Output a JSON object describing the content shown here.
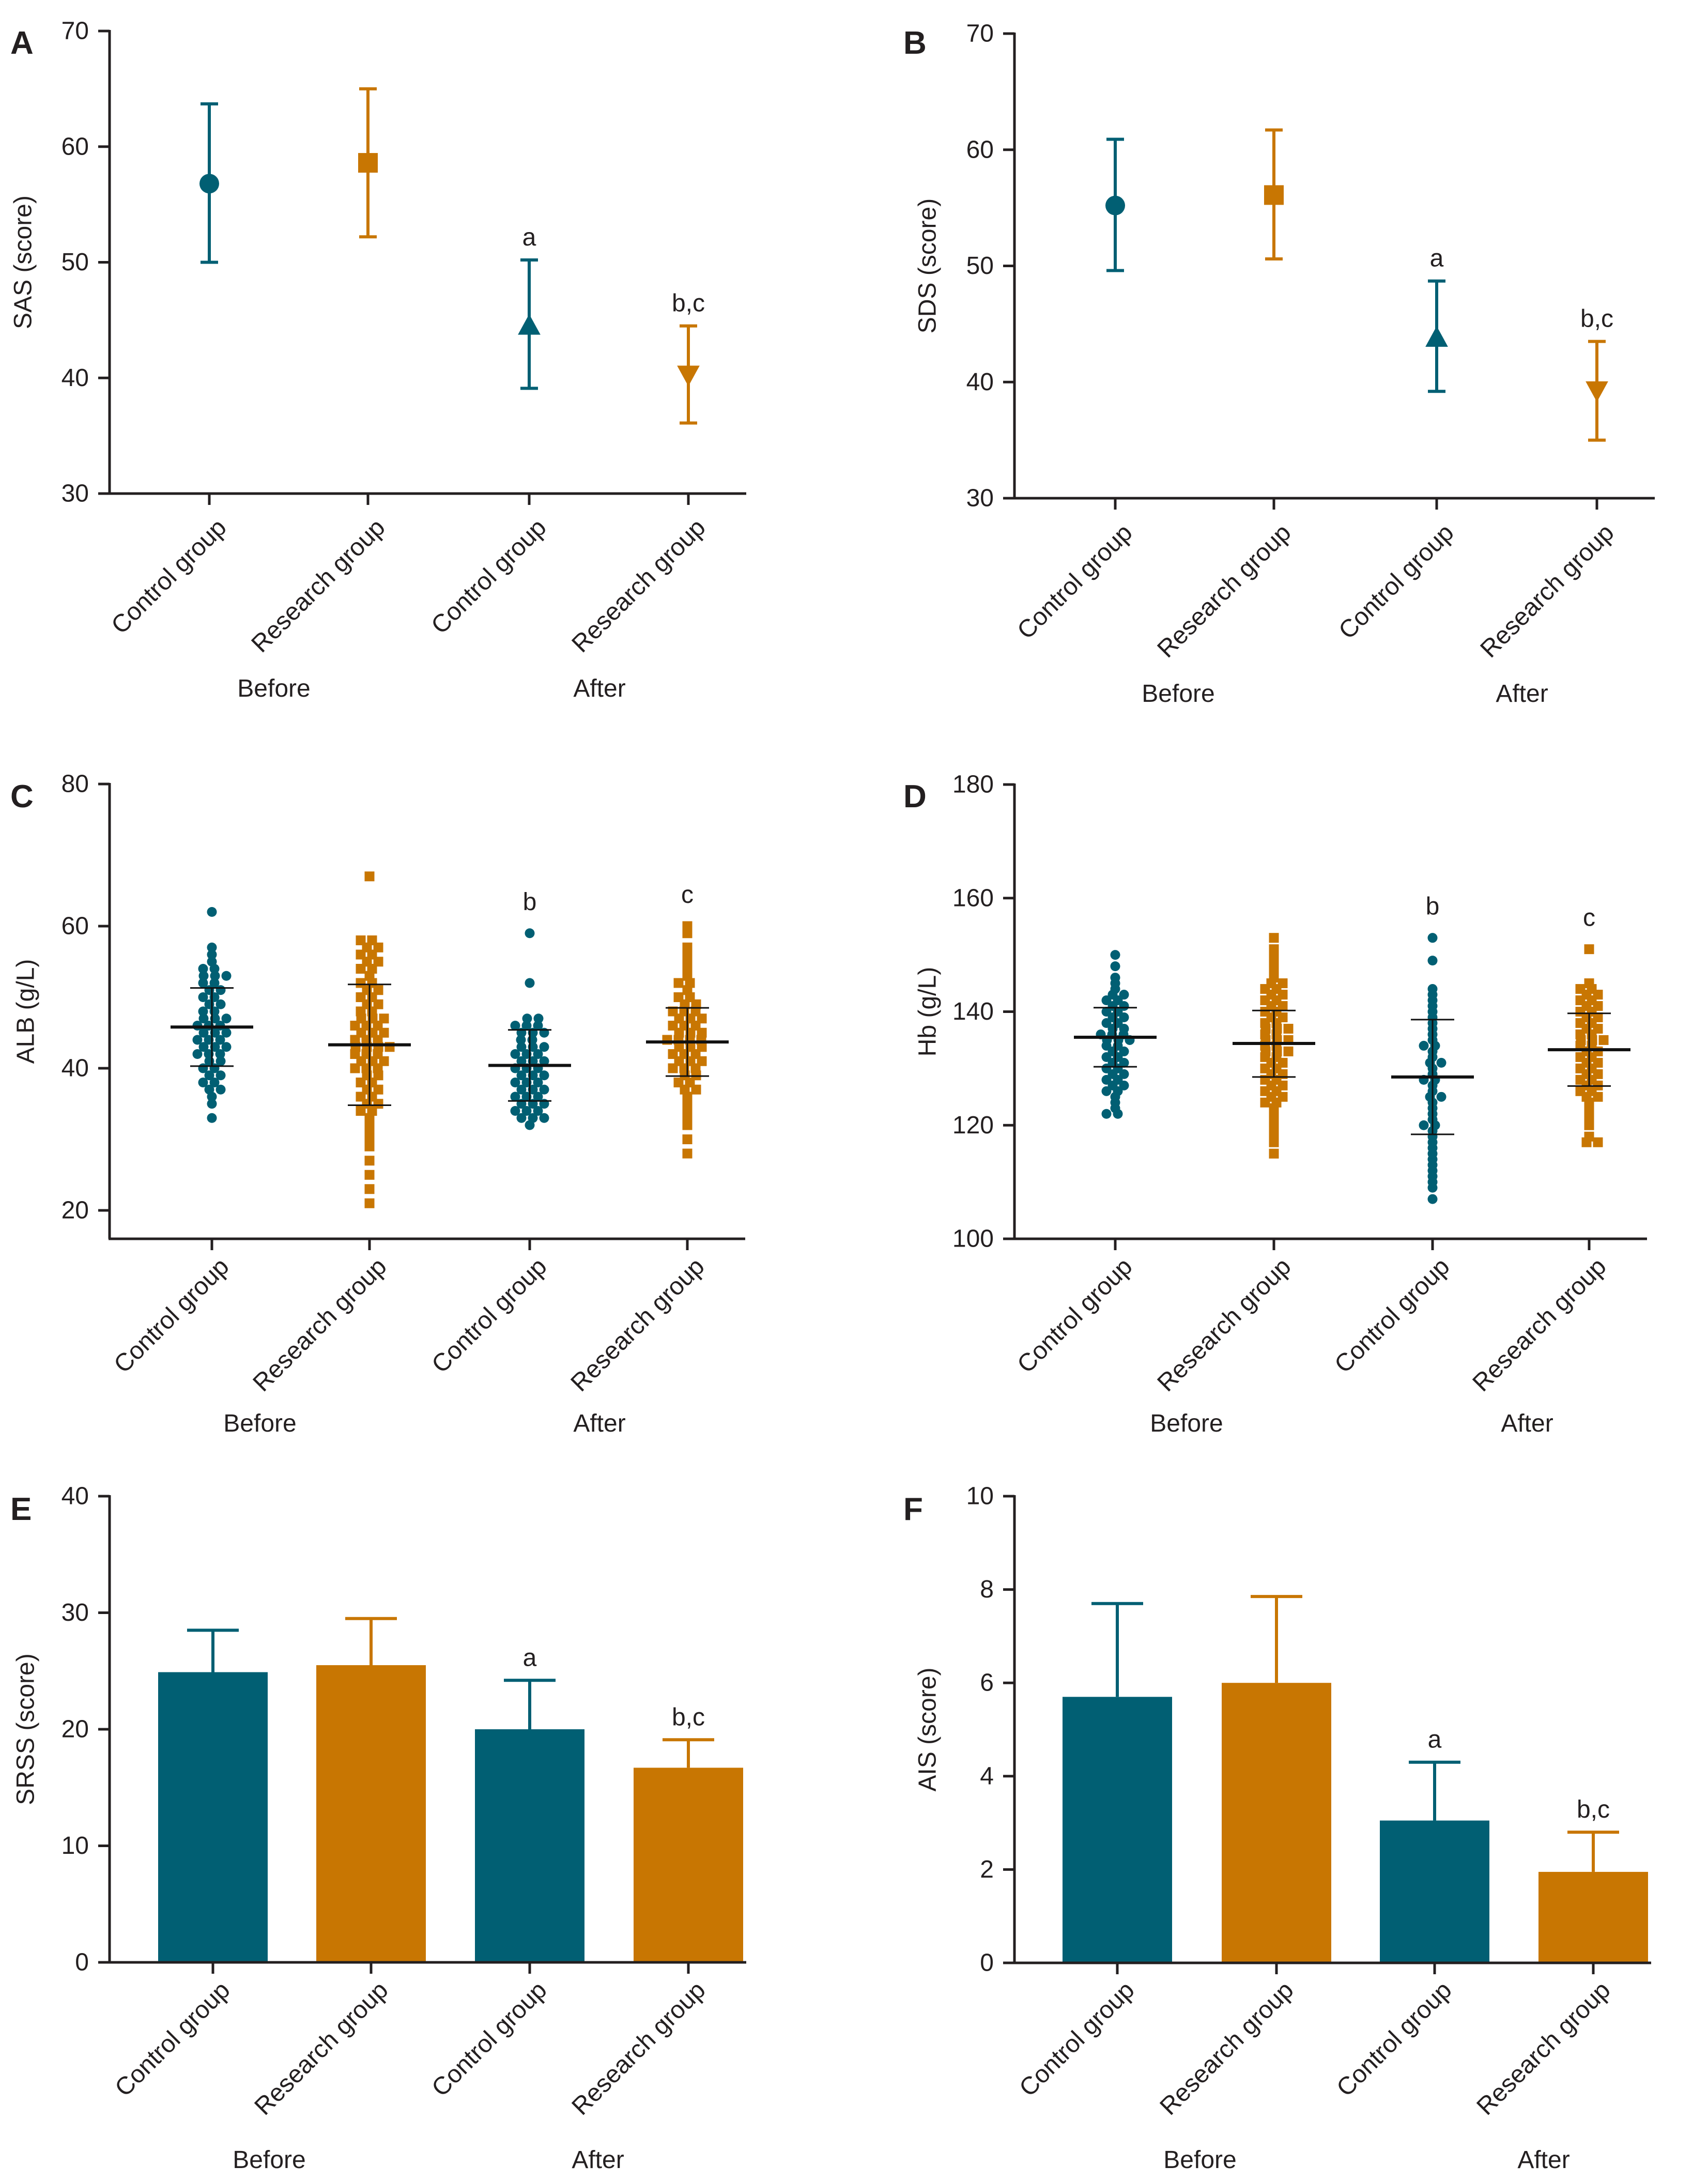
{
  "colors": {
    "control": "#015f73",
    "research": "#c87602",
    "axis": "#231f20"
  },
  "chart_data": [
    {
      "panel": "A",
      "type": "errorbar",
      "ylabel": "SAS (score)",
      "ylim": [
        30,
        70
      ],
      "yticks": [
        "30",
        "40",
        "50",
        "60",
        "70"
      ],
      "categories": [
        "Control group",
        "Research group",
        "Control group",
        "Research group"
      ],
      "groups": [
        "Before",
        "After"
      ],
      "points": [
        {
          "series": "control",
          "marker": "circle",
          "mean": 56.8,
          "low": 50.0,
          "high": 63.7,
          "label": ""
        },
        {
          "series": "research",
          "marker": "square",
          "mean": 58.6,
          "low": 52.2,
          "high": 65.0,
          "label": ""
        },
        {
          "series": "control",
          "marker": "triangle-up",
          "mean": 44.5,
          "low": 39.1,
          "high": 50.2,
          "label": "a"
        },
        {
          "series": "research",
          "marker": "triangle-down",
          "mean": 40.3,
          "low": 36.1,
          "high": 44.5,
          "label": "b,c"
        }
      ]
    },
    {
      "panel": "B",
      "type": "errorbar",
      "ylabel": "SDS (score)",
      "ylim": [
        30,
        70
      ],
      "yticks": [
        "30",
        "40",
        "50",
        "60",
        "70"
      ],
      "categories": [
        "Control group",
        "Research group",
        "Control group",
        "Research group"
      ],
      "groups": [
        "Before",
        "After"
      ],
      "points": [
        {
          "series": "control",
          "marker": "circle",
          "mean": 55.2,
          "low": 49.6,
          "high": 60.9,
          "label": ""
        },
        {
          "series": "research",
          "marker": "square",
          "mean": 56.1,
          "low": 50.6,
          "high": 61.7,
          "label": ""
        },
        {
          "series": "control",
          "marker": "triangle-up",
          "mean": 43.8,
          "low": 39.2,
          "high": 48.7,
          "label": "a"
        },
        {
          "series": "research",
          "marker": "triangle-down",
          "mean": 39.3,
          "low": 35.0,
          "high": 43.5,
          "label": "b,c"
        }
      ]
    },
    {
      "panel": "C",
      "type": "scatter",
      "ylabel": "ALB (g/L)",
      "ylim": [
        16,
        80
      ],
      "yticks": [
        "20",
        "40",
        "60",
        "80"
      ],
      "categories": [
        "Control group",
        "Research group",
        "Control group",
        "Research group"
      ],
      "groups": [
        "Before",
        "After"
      ],
      "columns": [
        {
          "series": "control",
          "marker": "circle",
          "label": "",
          "mean": 45.8,
          "sdlow": 40.3,
          "sdhigh": 51.3,
          "values": [
            62,
            57,
            56,
            55,
            54,
            54,
            53,
            53,
            53,
            52,
            52,
            51,
            51,
            50,
            50,
            49,
            49,
            48,
            48,
            47,
            47,
            47,
            46,
            46,
            46,
            45,
            45,
            45,
            44,
            44,
            44,
            43,
            43,
            43,
            42,
            42,
            42,
            41,
            41,
            40,
            40,
            39,
            39,
            38,
            38,
            37,
            37,
            36,
            35,
            33
          ]
        },
        {
          "series": "research",
          "marker": "square",
          "label": "",
          "mean": 43.3,
          "sdlow": 34.8,
          "sdhigh": 51.8,
          "values": [
            67,
            58,
            58,
            57,
            57,
            56,
            56,
            55,
            55,
            54,
            54,
            53,
            52,
            52,
            51,
            51,
            50,
            50,
            49,
            49,
            48,
            48,
            47,
            47,
            47,
            46,
            46,
            46,
            45,
            45,
            45,
            44,
            44,
            44,
            43,
            43,
            43,
            43,
            42,
            42,
            42,
            41,
            41,
            41,
            40,
            40,
            40,
            39,
            39,
            38,
            38,
            37,
            37,
            36,
            36,
            35,
            35,
            34,
            34,
            33,
            32,
            31,
            30,
            29,
            27,
            25,
            23,
            21
          ]
        },
        {
          "series": "control",
          "marker": "circle",
          "label": "b",
          "mean": 40.4,
          "sdlow": 35.4,
          "sdhigh": 45.4,
          "values": [
            59,
            52,
            47,
            47,
            46,
            46,
            46,
            45,
            45,
            45,
            44,
            44,
            43,
            43,
            43,
            42,
            42,
            42,
            41,
            41,
            41,
            40,
            40,
            40,
            39,
            39,
            39,
            38,
            38,
            38,
            37,
            37,
            37,
            36,
            36,
            36,
            35,
            35,
            35,
            34,
            34,
            34,
            33,
            33,
            33,
            32
          ]
        },
        {
          "series": "research",
          "marker": "square",
          "label": "c",
          "mean": 43.7,
          "sdlow": 38.9,
          "sdhigh": 48.5,
          "values": [
            60,
            59,
            57,
            56,
            55,
            54,
            53,
            52,
            52,
            51,
            50,
            50,
            49,
            49,
            48,
            48,
            48,
            47,
            47,
            47,
            46,
            46,
            46,
            45,
            45,
            45,
            44,
            44,
            44,
            44,
            43,
            43,
            43,
            42,
            42,
            42,
            41,
            41,
            41,
            40,
            40,
            40,
            39,
            39,
            38,
            38,
            37,
            37,
            36,
            35,
            34,
            33,
            32,
            30,
            28
          ]
        }
      ]
    },
    {
      "panel": "D",
      "type": "scatter",
      "ylabel": "Hb (g/L)",
      "ylim": [
        100,
        180
      ],
      "yticks": [
        "100",
        "120",
        "140",
        "160",
        "180"
      ],
      "categories": [
        "Control group",
        "Research group",
        "Control group",
        "Research group"
      ],
      "groups": [
        "Before",
        "After"
      ],
      "columns": [
        {
          "series": "control",
          "marker": "circle",
          "label": "",
          "mean": 135.5,
          "sdlow": 130.3,
          "sdhigh": 140.7,
          "values": [
            150,
            148,
            146,
            145,
            144,
            143,
            143,
            142,
            142,
            141,
            141,
            140,
            140,
            139,
            139,
            138,
            138,
            137,
            137,
            136,
            136,
            136,
            135,
            135,
            135,
            134,
            134,
            133,
            133,
            132,
            132,
            131,
            131,
            130,
            130,
            129,
            129,
            128,
            128,
            127,
            127,
            126,
            126,
            125,
            124,
            123,
            122,
            122
          ]
        },
        {
          "series": "research",
          "marker": "square",
          "label": "",
          "mean": 134.4,
          "sdlow": 128.5,
          "sdhigh": 140.2,
          "values": [
            153,
            151,
            150,
            149,
            148,
            147,
            146,
            145,
            145,
            144,
            144,
            143,
            143,
            142,
            142,
            141,
            141,
            140,
            140,
            139,
            139,
            138,
            138,
            137,
            137,
            137,
            136,
            136,
            135,
            135,
            135,
            134,
            134,
            133,
            133,
            133,
            132,
            132,
            131,
            131,
            130,
            130,
            129,
            129,
            128,
            128,
            127,
            127,
            126,
            126,
            125,
            125,
            124,
            124,
            123,
            122,
            121,
            120,
            119,
            118,
            117,
            115
          ]
        },
        {
          "series": "control",
          "marker": "circle",
          "label": "b",
          "mean": 128.5,
          "sdlow": 118.4,
          "sdhigh": 138.6,
          "values": [
            153,
            149,
            144,
            143,
            142,
            141,
            140,
            139,
            138,
            137,
            136,
            135,
            134,
            134,
            133,
            132,
            131,
            131,
            130,
            129,
            128,
            128,
            127,
            126,
            125,
            125,
            124,
            123,
            122,
            121,
            120,
            120,
            119,
            118,
            117,
            116,
            115,
            114,
            113,
            112,
            111,
            110,
            109,
            107
          ]
        },
        {
          "series": "research",
          "marker": "square",
          "label": "c",
          "mean": 133.3,
          "sdlow": 126.9,
          "sdhigh": 139.7,
          "values": [
            151,
            145,
            144,
            144,
            143,
            143,
            142,
            142,
            141,
            141,
            140,
            140,
            139,
            139,
            138,
            138,
            137,
            137,
            136,
            136,
            135,
            135,
            135,
            134,
            134,
            133,
            133,
            132,
            132,
            131,
            131,
            130,
            130,
            129,
            129,
            128,
            128,
            127,
            127,
            126,
            126,
            125,
            125,
            124,
            123,
            122,
            121,
            120,
            118,
            117,
            117
          ]
        }
      ]
    },
    {
      "panel": "E",
      "type": "bar",
      "ylabel": "SRSS (score)",
      "ylim": [
        0,
        40
      ],
      "yticks": [
        "0",
        "10",
        "20",
        "30",
        "40"
      ],
      "categories": [
        "Control group",
        "Research group",
        "Control group",
        "Research group"
      ],
      "groups": [
        "Before",
        "After"
      ],
      "bars": [
        {
          "series": "control",
          "value": 24.9,
          "err": 3.6,
          "label": ""
        },
        {
          "series": "research",
          "value": 25.5,
          "err": 4.0,
          "label": ""
        },
        {
          "series": "control",
          "value": 20.0,
          "err": 4.2,
          "label": "a"
        },
        {
          "series": "research",
          "value": 16.7,
          "err": 2.4,
          "label": "b,c"
        }
      ]
    },
    {
      "panel": "F",
      "type": "bar",
      "ylabel": "AIS (score)",
      "ylim": [
        0,
        10
      ],
      "yticks": [
        "0",
        "2",
        "4",
        "6",
        "8",
        "10"
      ],
      "categories": [
        "Control group",
        "Research group",
        "Control group",
        "Research group"
      ],
      "groups": [
        "Before",
        "After"
      ],
      "bars": [
        {
          "series": "control",
          "value": 5.7,
          "err": 2.0,
          "label": ""
        },
        {
          "series": "research",
          "value": 6.0,
          "err": 1.85,
          "label": ""
        },
        {
          "series": "control",
          "value": 3.05,
          "err": 1.25,
          "label": "a"
        },
        {
          "series": "research",
          "value": 1.95,
          "err": 0.85,
          "label": "b,c"
        }
      ]
    }
  ]
}
